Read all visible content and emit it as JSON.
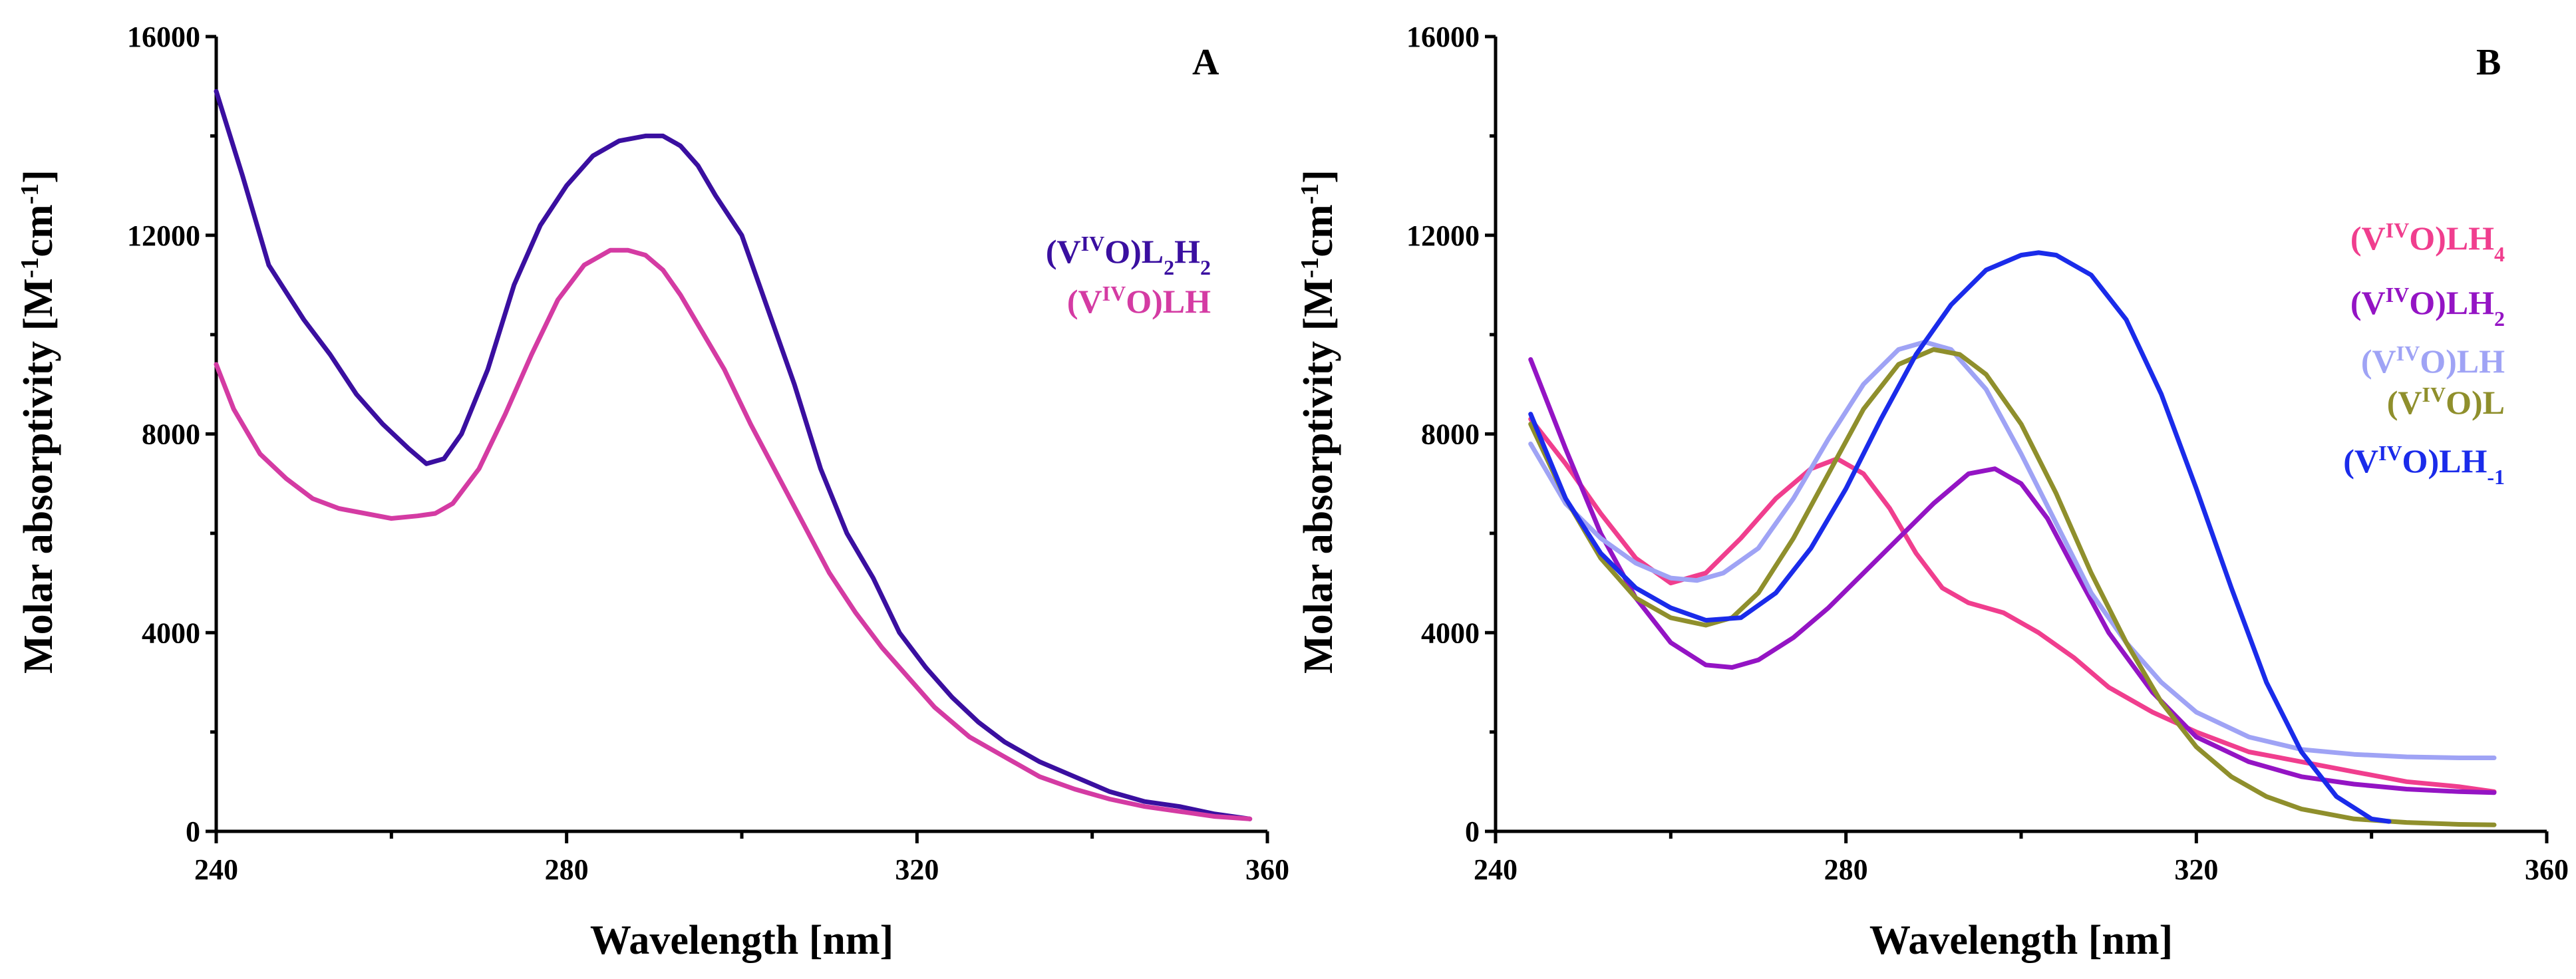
{
  "chart_data": [
    {
      "type": "line",
      "panel": "A",
      "xlabel": "Wavelength [nm]",
      "ylabel": "Molar absorptivity [M-1cm-1]",
      "ylabel_parts": [
        "Molar absorptivity [M",
        "-1",
        "cm",
        "-1",
        "]"
      ],
      "xlim": [
        240,
        360
      ],
      "ylim": [
        0,
        16000
      ],
      "xticks": [
        240,
        280,
        320,
        360
      ],
      "yticks": [
        0,
        4000,
        8000,
        12000,
        16000
      ],
      "legend_position": "right",
      "series": [
        {
          "name": "(VIVO)L2H2",
          "label_parts": [
            [
              "(V",
              ""
            ],
            [
              "IV",
              "sup"
            ],
            [
              "O)L",
              ""
            ],
            [
              "2",
              "sub"
            ],
            [
              "H",
              ""
            ],
            [
              "2",
              "sub"
            ]
          ],
          "color": "#3a0fa0",
          "x": [
            240,
            243,
            246,
            250,
            253,
            256,
            259,
            262,
            264,
            266,
            268,
            271,
            274,
            277,
            280,
            283,
            286,
            289,
            291,
            293,
            295,
            297,
            300,
            303,
            306,
            309,
            312,
            315,
            318,
            321,
            324,
            327,
            330,
            334,
            338,
            342,
            346,
            350,
            354,
            358
          ],
          "y": [
            14900,
            13200,
            11400,
            10300,
            9600,
            8800,
            8200,
            7700,
            7400,
            7500,
            8000,
            9300,
            11000,
            12200,
            13000,
            13600,
            13900,
            14000,
            14000,
            13800,
            13400,
            12800,
            12000,
            10500,
            9000,
            7300,
            6000,
            5100,
            4000,
            3300,
            2700,
            2200,
            1800,
            1400,
            1100,
            800,
            600,
            500,
            350,
            250
          ]
        },
        {
          "name": "(VIVO)LH",
          "label_parts": [
            [
              "(V",
              ""
            ],
            [
              "IV",
              "sup"
            ],
            [
              "O)LH",
              ""
            ]
          ],
          "color": "#d43ba3",
          "x": [
            240,
            242,
            245,
            248,
            251,
            254,
            257,
            260,
            263,
            265,
            267,
            270,
            273,
            276,
            279,
            282,
            285,
            287,
            289,
            291,
            293,
            295,
            298,
            301,
            304,
            307,
            310,
            313,
            316,
            319,
            322,
            326,
            330,
            334,
            338,
            342,
            346,
            350,
            354,
            358
          ],
          "y": [
            9400,
            8500,
            7600,
            7100,
            6700,
            6500,
            6400,
            6300,
            6350,
            6400,
            6600,
            7300,
            8400,
            9600,
            10700,
            11400,
            11700,
            11700,
            11600,
            11300,
            10800,
            10200,
            9300,
            8200,
            7200,
            6200,
            5200,
            4400,
            3700,
            3100,
            2500,
            1900,
            1500,
            1100,
            850,
            650,
            500,
            400,
            300,
            250
          ]
        }
      ]
    },
    {
      "type": "line",
      "panel": "B",
      "xlabel": "Wavelength [nm]",
      "ylabel": "Molar absorptivity [M-1cm-1]",
      "ylabel_parts": [
        "Molar absorptivity [M",
        "-1",
        "cm",
        "-1",
        "]"
      ],
      "xlim": [
        240,
        360
      ],
      "ylim": [
        0,
        16000
      ],
      "xticks": [
        240,
        280,
        320,
        360
      ],
      "yticks": [
        0,
        4000,
        8000,
        12000,
        16000
      ],
      "legend_position": "right",
      "series": [
        {
          "name": "(VIVO)LH4",
          "label_parts": [
            [
              "(V",
              ""
            ],
            [
              "IV",
              "sup"
            ],
            [
              "O)LH",
              ""
            ],
            [
              "4",
              "sub"
            ]
          ],
          "color": "#f03e8e",
          "x": [
            244,
            248,
            252,
            256,
            260,
            264,
            268,
            272,
            276,
            279,
            282,
            285,
            288,
            291,
            294,
            298,
            302,
            306,
            310,
            315,
            320,
            326,
            332,
            338,
            344,
            350,
            354
          ],
          "y": [
            8300,
            7400,
            6400,
            5500,
            5000,
            5200,
            5900,
            6700,
            7300,
            7500,
            7200,
            6500,
            5600,
            4900,
            4600,
            4400,
            4000,
            3500,
            2900,
            2400,
            2000,
            1600,
            1400,
            1200,
            1000,
            900,
            800
          ]
        },
        {
          "name": "(VIVO)LH2",
          "label_parts": [
            [
              "(V",
              ""
            ],
            [
              "IV",
              "sup"
            ],
            [
              "O)LH",
              ""
            ],
            [
              "2",
              "sub"
            ]
          ],
          "color": "#9414c4",
          "x": [
            244,
            248,
            252,
            256,
            260,
            264,
            267,
            270,
            274,
            278,
            282,
            286,
            290,
            294,
            297,
            300,
            303,
            306,
            310,
            315,
            320,
            326,
            332,
            338,
            344,
            350,
            354
          ],
          "y": [
            9500,
            7700,
            6000,
            4700,
            3800,
            3350,
            3300,
            3450,
            3900,
            4500,
            5200,
            5900,
            6600,
            7200,
            7300,
            7000,
            6300,
            5300,
            4000,
            2800,
            1900,
            1400,
            1100,
            950,
            850,
            800,
            780
          ]
        },
        {
          "name": "(VIVO)LH",
          "label_parts": [
            [
              "(V",
              ""
            ],
            [
              "IV",
              "sup"
            ],
            [
              "O)LH",
              ""
            ]
          ],
          "color": "#9fa3f5",
          "x": [
            244,
            248,
            252,
            256,
            260,
            263,
            266,
            270,
            274,
            278,
            282,
            286,
            289,
            292,
            296,
            300,
            304,
            308,
            312,
            316,
            320,
            326,
            332,
            338,
            344,
            350,
            354
          ],
          "y": [
            7800,
            6600,
            5900,
            5400,
            5100,
            5050,
            5200,
            5700,
            6700,
            7900,
            9000,
            9700,
            9850,
            9700,
            8900,
            7600,
            6200,
            4800,
            3800,
            3000,
            2400,
            1900,
            1650,
            1550,
            1500,
            1480,
            1480
          ]
        },
        {
          "name": "(VIVO)L",
          "label_parts": [
            [
              "(V",
              ""
            ],
            [
              "IV",
              "sup"
            ],
            [
              "O)L",
              ""
            ]
          ],
          "color": "#8f8f2c",
          "x": [
            244,
            248,
            252,
            256,
            260,
            264,
            267,
            270,
            274,
            278,
            282,
            286,
            290,
            293,
            296,
            300,
            304,
            308,
            312,
            316,
            320,
            324,
            328,
            332,
            338,
            344,
            350,
            354
          ],
          "y": [
            8200,
            6700,
            5500,
            4700,
            4300,
            4150,
            4300,
            4800,
            5900,
            7200,
            8500,
            9400,
            9700,
            9600,
            9200,
            8200,
            6800,
            5200,
            3800,
            2600,
            1700,
            1100,
            700,
            450,
            250,
            180,
            140,
            130
          ]
        },
        {
          "name": "(VIVO)LH-1",
          "label_parts": [
            [
              "(V",
              ""
            ],
            [
              "IV",
              "sup"
            ],
            [
              "O)LH",
              ""
            ],
            [
              "-1",
              "sub"
            ]
          ],
          "color": "#1a2bea",
          "x": [
            244,
            248,
            252,
            256,
            260,
            264,
            268,
            272,
            276,
            280,
            284,
            288,
            292,
            296,
            300,
            302,
            304,
            308,
            312,
            316,
            320,
            324,
            328,
            332,
            336,
            340,
            342
          ],
          "y": [
            8400,
            6700,
            5600,
            4900,
            4500,
            4250,
            4300,
            4800,
            5700,
            6900,
            8300,
            9600,
            10600,
            11300,
            11600,
            11650,
            11600,
            11200,
            10300,
            8800,
            6900,
            4900,
            3000,
            1600,
            700,
            250,
            200
          ]
        }
      ]
    }
  ],
  "panels": [
    {
      "letter": "A"
    },
    {
      "letter": "B"
    }
  ]
}
